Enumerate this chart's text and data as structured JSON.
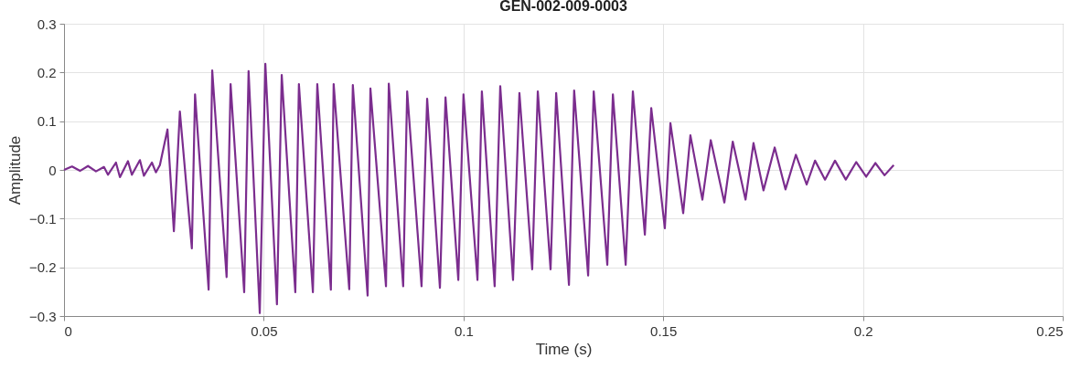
{
  "chart_data": {
    "type": "line",
    "title": "GEN-002-009-0003",
    "xlabel": "Time (s)",
    "ylabel": "Amplitude",
    "xlim": [
      0,
      0.25
    ],
    "xticks": [
      0,
      0.05,
      0.1,
      0.15,
      0.2,
      0.25
    ],
    "ylim": [
      -0.3,
      0.3
    ],
    "yticks": [
      -0.3,
      -0.2,
      -0.1,
      0,
      0.1,
      0.2,
      0.3
    ],
    "grid": true,
    "series": [
      {
        "color": "#7b2d8e",
        "x": [
          0,
          0.002,
          0.004,
          0.006,
          0.008,
          0.01,
          0.011,
          0.013,
          0.014,
          0.016,
          0.017,
          0.019,
          0.02,
          0.022,
          0.023,
          0.024,
          0.0259,
          0.0275,
          0.029,
          0.032,
          0.0328,
          0.0362,
          0.0371,
          0.0407,
          0.0417,
          0.0451,
          0.0462,
          0.049,
          0.0504,
          0.0533,
          0.0545,
          0.0579,
          0.0588,
          0.0623,
          0.0634,
          0.0668,
          0.0675,
          0.0714,
          0.0723,
          0.076,
          0.0767,
          0.0806,
          0.0813,
          0.0849,
          0.0859,
          0.0895,
          0.0909,
          0.0941,
          0.0955,
          0.0987,
          0.1,
          0.1035,
          0.1046,
          0.1078,
          0.1092,
          0.1124,
          0.114,
          0.1172,
          0.1186,
          0.1218,
          0.1232,
          0.1264,
          0.1277,
          0.1312,
          0.1326,
          0.136,
          0.1374,
          0.1406,
          0.1424,
          0.1454,
          0.147,
          0.1504,
          0.1518,
          0.155,
          0.1568,
          0.1598,
          0.1619,
          0.1653,
          0.1674,
          0.1706,
          0.1726,
          0.1751,
          0.1779,
          0.1806,
          0.1832,
          0.1859,
          0.188,
          0.1905,
          0.193,
          0.1957,
          0.1983,
          0.2008,
          0.2031,
          0.2054,
          0.2077
        ],
        "values": [
          0,
          0.007,
          -0.002,
          0.008,
          -0.003,
          0.006,
          -0.01,
          0.015,
          -0.015,
          0.018,
          -0.01,
          0.02,
          -0.012,
          0.015,
          -0.005,
          0.01,
          0.083,
          -0.126,
          0.12,
          -0.161,
          0.155,
          -0.246,
          0.204,
          -0.22,
          0.176,
          -0.251,
          0.203,
          -0.294,
          0.218,
          -0.276,
          0.195,
          -0.251,
          0.176,
          -0.251,
          0.176,
          -0.246,
          0.176,
          -0.245,
          0.174,
          -0.258,
          0.167,
          -0.239,
          0.177,
          -0.239,
          0.161,
          -0.239,
          0.146,
          -0.242,
          0.149,
          -0.226,
          0.155,
          -0.226,
          0.161,
          -0.239,
          0.172,
          -0.226,
          0.158,
          -0.204,
          0.161,
          -0.204,
          0.158,
          -0.236,
          0.163,
          -0.217,
          0.161,
          -0.195,
          0.155,
          -0.195,
          0.161,
          -0.133,
          0.127,
          -0.12,
          0.096,
          -0.089,
          0.071,
          -0.061,
          0.061,
          -0.067,
          0.058,
          -0.061,
          0.055,
          -0.042,
          0.046,
          -0.04,
          0.031,
          -0.03,
          0.019,
          -0.02,
          0.019,
          -0.02,
          0.016,
          -0.014,
          0.014,
          -0.011,
          0.01
        ]
      }
    ]
  }
}
